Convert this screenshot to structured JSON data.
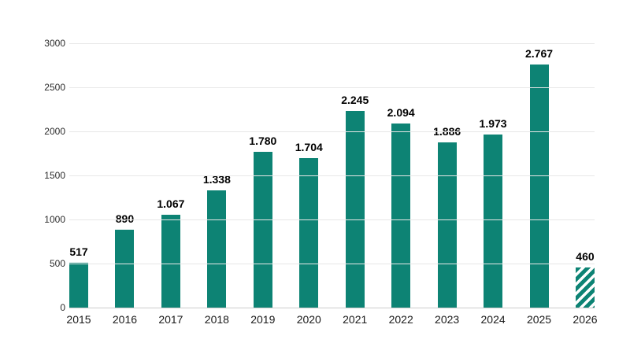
{
  "chart_data": {
    "type": "bar",
    "title": "",
    "xlabel": "",
    "ylabel": "",
    "categories": [
      "2015",
      "2016",
      "2017",
      "2018",
      "2019",
      "2020",
      "2021",
      "2022",
      "2023",
      "2024",
      "2025",
      "2026"
    ],
    "values": [
      517,
      890,
      1067,
      1338,
      1780,
      1704,
      2245,
      2094,
      1886,
      1973,
      2767,
      460
    ],
    "value_labels": [
      "517",
      "890",
      "1.067",
      "1.338",
      "1.780",
      "1.704",
      "2.245",
      "2.094",
      "1.886",
      "1.973",
      "2.767",
      "460"
    ],
    "bar_styles": [
      "solid",
      "solid",
      "solid",
      "solid",
      "solid",
      "solid",
      "solid",
      "solid",
      "solid",
      "solid",
      "solid",
      "hatched"
    ],
    "ylim": [
      0,
      3000
    ],
    "yticks": [
      0,
      500,
      1000,
      1500,
      2000,
      2500,
      3000
    ],
    "ytick_labels": [
      "0",
      "500",
      "1000",
      "1500",
      "2000",
      "2500",
      "3000"
    ],
    "grid": true,
    "legend": "none",
    "colors": {
      "bar": "#0d8374",
      "hatch_background": "#ffffff",
      "grid": "#e7e7e7",
      "axis_line": "#cccccc",
      "value_label": "#000000",
      "tick_label": "#2b2b2b"
    }
  }
}
